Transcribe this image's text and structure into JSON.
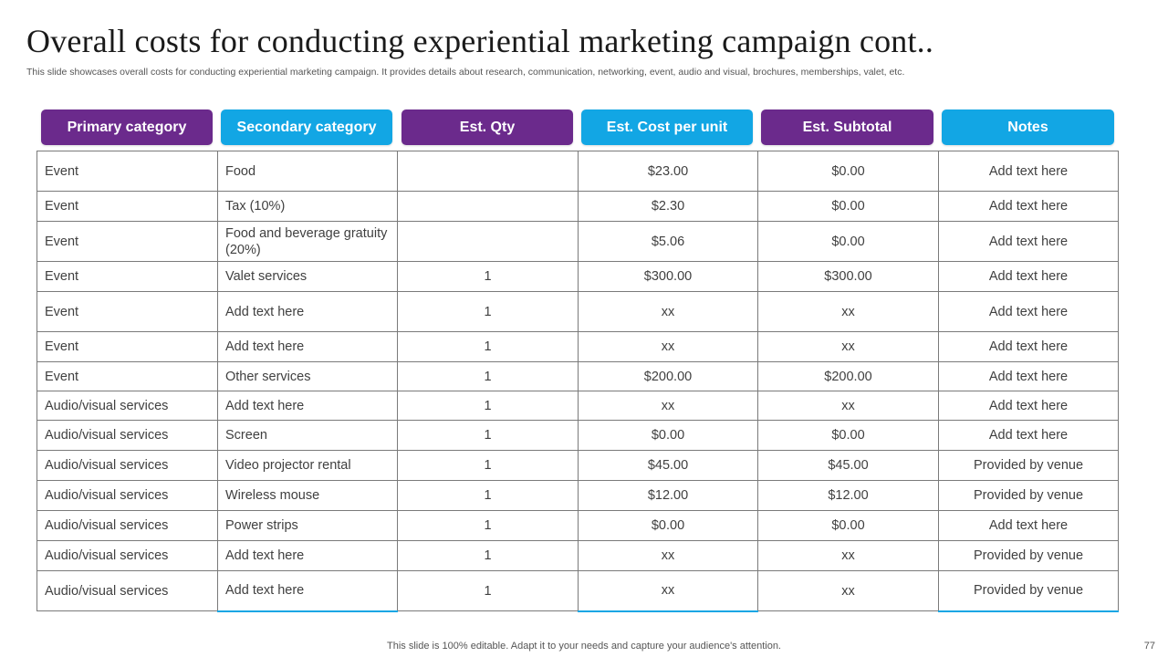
{
  "title": "Overall costs for conducting experiential marketing campaign cont..",
  "subtitle": "This slide showcases overall costs for conducting experiential marketing campaign. It provides details about research, communication, networking, event, audio and visual, brochures, memberships, valet, etc.",
  "headers": [
    "Primary category",
    "Secondary category",
    "Est. Qty",
    "Est. Cost per unit",
    "Est. Subtotal",
    "Notes"
  ],
  "colors": {
    "purple": "#6b2a8c",
    "cyan": "#12a6e4"
  },
  "rows": [
    [
      "Event",
      "Food",
      "",
      "$23.00",
      "$0.00",
      "Add text here"
    ],
    [
      "Event",
      "Tax (10%)",
      "",
      "$2.30",
      "$0.00",
      "Add text here"
    ],
    [
      "Event",
      "Food and beverage gratuity (20%)",
      "",
      "$5.06",
      "$0.00",
      "Add text here"
    ],
    [
      "Event",
      "Valet services",
      "1",
      "$300.00",
      "$300.00",
      "Add text here"
    ],
    [
      "Event",
      "Add text here",
      "1",
      "xx",
      "xx",
      "Add text here"
    ],
    [
      "Event",
      "Add text here",
      "1",
      "xx",
      "xx",
      "Add text here"
    ],
    [
      "Event",
      "Other services",
      "1",
      "$200.00",
      "$200.00",
      "Add text here"
    ],
    [
      "Audio/visual services",
      "Add text here",
      "1",
      "xx",
      "xx",
      "Add text here"
    ],
    [
      "Audio/visual services",
      "Screen",
      "1",
      "$0.00",
      "$0.00",
      "Add text here"
    ],
    [
      "Audio/visual services",
      "Video projector rental",
      "1",
      "$45.00",
      "$45.00",
      "Provided by venue"
    ],
    [
      "Audio/visual services",
      "Wireless mouse",
      "1",
      "$12.00",
      "$12.00",
      "Provided by venue"
    ],
    [
      "Audio/visual services",
      "Power strips",
      "1",
      "$0.00",
      "$0.00",
      "Add text here"
    ],
    [
      "Audio/visual services",
      "Add text here",
      "1",
      "xx",
      "xx",
      "Provided by venue"
    ],
    [
      "Audio/visual services",
      "Add text here",
      "1",
      "xx",
      "xx",
      "Provided by venue"
    ]
  ],
  "footer": "This slide is 100% editable. Adapt it to your needs and capture your audience's attention.",
  "page_number": "77"
}
